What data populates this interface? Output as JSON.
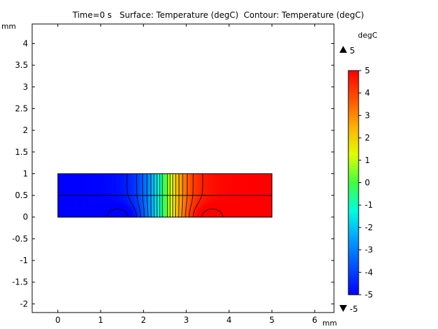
{
  "chart_data": {
    "type": "heatmap",
    "title": "Time=0 s   Surface: Temperature (degC)  Contour: Temperature (degC)",
    "x_unit": "mm",
    "y_unit": "mm",
    "xlim": [
      -0.6,
      6.45
    ],
    "ylim": [
      -2.2,
      4.45
    ],
    "x_ticks": [
      0,
      1,
      2,
      3,
      4,
      5,
      6
    ],
    "x_tick_labels": [
      "0",
      "1",
      "2",
      "3",
      "4",
      "5",
      "6"
    ],
    "y_ticks": [
      -2,
      -1.5,
      -1,
      -0.5,
      0,
      0.5,
      1,
      1.5,
      2,
      2.5,
      3,
      3.5,
      4
    ],
    "y_tick_labels": [
      "-2",
      "-1.5",
      "-1",
      "-0.5",
      "0",
      "0.5",
      "1",
      "1.5",
      "2",
      "2.5",
      "3",
      "3.5",
      "4"
    ],
    "domain": {
      "x": [
        0,
        5
      ],
      "y": [
        0,
        1
      ],
      "interface_y": 0.5
    },
    "colorbar": {
      "unit": "degC",
      "min": -5,
      "max": 5,
      "ticks": [
        -5,
        -4,
        -3,
        -2,
        -1,
        0,
        1,
        2,
        3,
        4,
        5
      ],
      "tick_labels": [
        "-5",
        "-4",
        "-3",
        "-2",
        "-1",
        "0",
        "1",
        "2",
        "3",
        "4",
        "5"
      ],
      "max_label": "5",
      "min_label": "-5"
    },
    "field": {
      "left_boundary_value": -5,
      "right_boundary_value": 5,
      "transition_center_x": 2.5,
      "cold_spot_x": 1.5,
      "hot_spot_x": 3.5
    },
    "grid": false,
    "colorbar_placement": "right"
  },
  "colors": {
    "low": "#0000ff",
    "mid": "#00ff00",
    "high": "#ff0000",
    "contour": "#000000"
  }
}
